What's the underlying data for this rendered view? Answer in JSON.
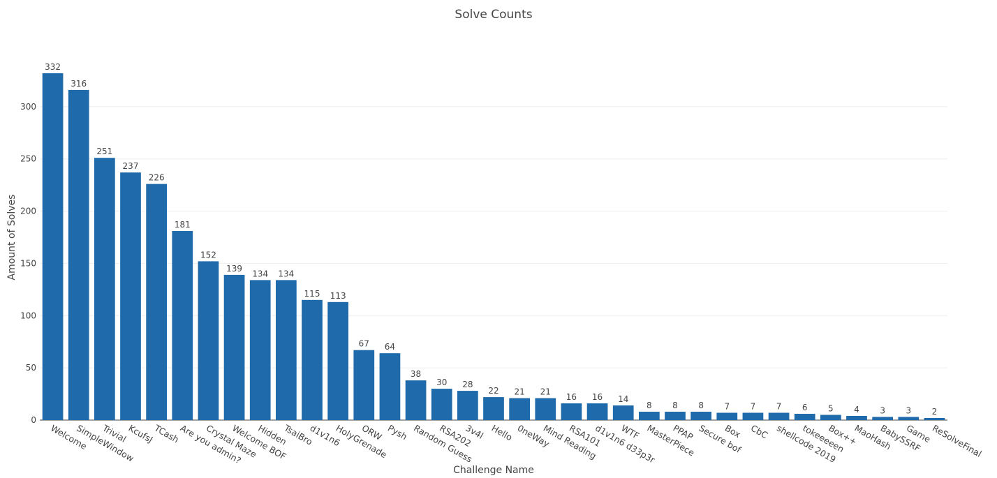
{
  "chart_data": {
    "type": "bar",
    "title": "Solve Counts",
    "xlabel": "Challenge Name",
    "ylabel": "Amount of Solves",
    "ylim": [
      0,
      350
    ],
    "yticks": [
      0,
      50,
      100,
      150,
      200,
      250,
      300
    ],
    "bar_color": "#1f6aab",
    "grid": true,
    "categories": [
      "Welcome",
      "SimpleWindow",
      "Trivial",
      "KcufsJ",
      "TCash",
      "Are you admin?",
      "Crystal Maze",
      "Welcome BOF",
      "Hidden",
      "TsaiBro",
      "d1v1n6",
      "HolyGrenade",
      "ORW",
      "Pysh",
      "Random Guess",
      "RSA202",
      "3v4l",
      "Hello",
      "0neWay",
      "Mind Reading",
      "RSA101",
      "d1v1n6 d33p3r",
      "WTF",
      "MasterPiece",
      "PPAP",
      "Secure bof",
      "Box",
      "CbC",
      "shellcode 2019",
      "tokeeeeen",
      "Box++",
      "MaoHash",
      "BabySSRF",
      "Game",
      "ReSolveFinal"
    ],
    "values": [
      332,
      316,
      251,
      237,
      226,
      181,
      152,
      139,
      134,
      134,
      115,
      113,
      67,
      64,
      38,
      30,
      28,
      22,
      21,
      21,
      16,
      16,
      14,
      8,
      8,
      8,
      7,
      7,
      7,
      6,
      5,
      4,
      3,
      3,
      2
    ]
  }
}
